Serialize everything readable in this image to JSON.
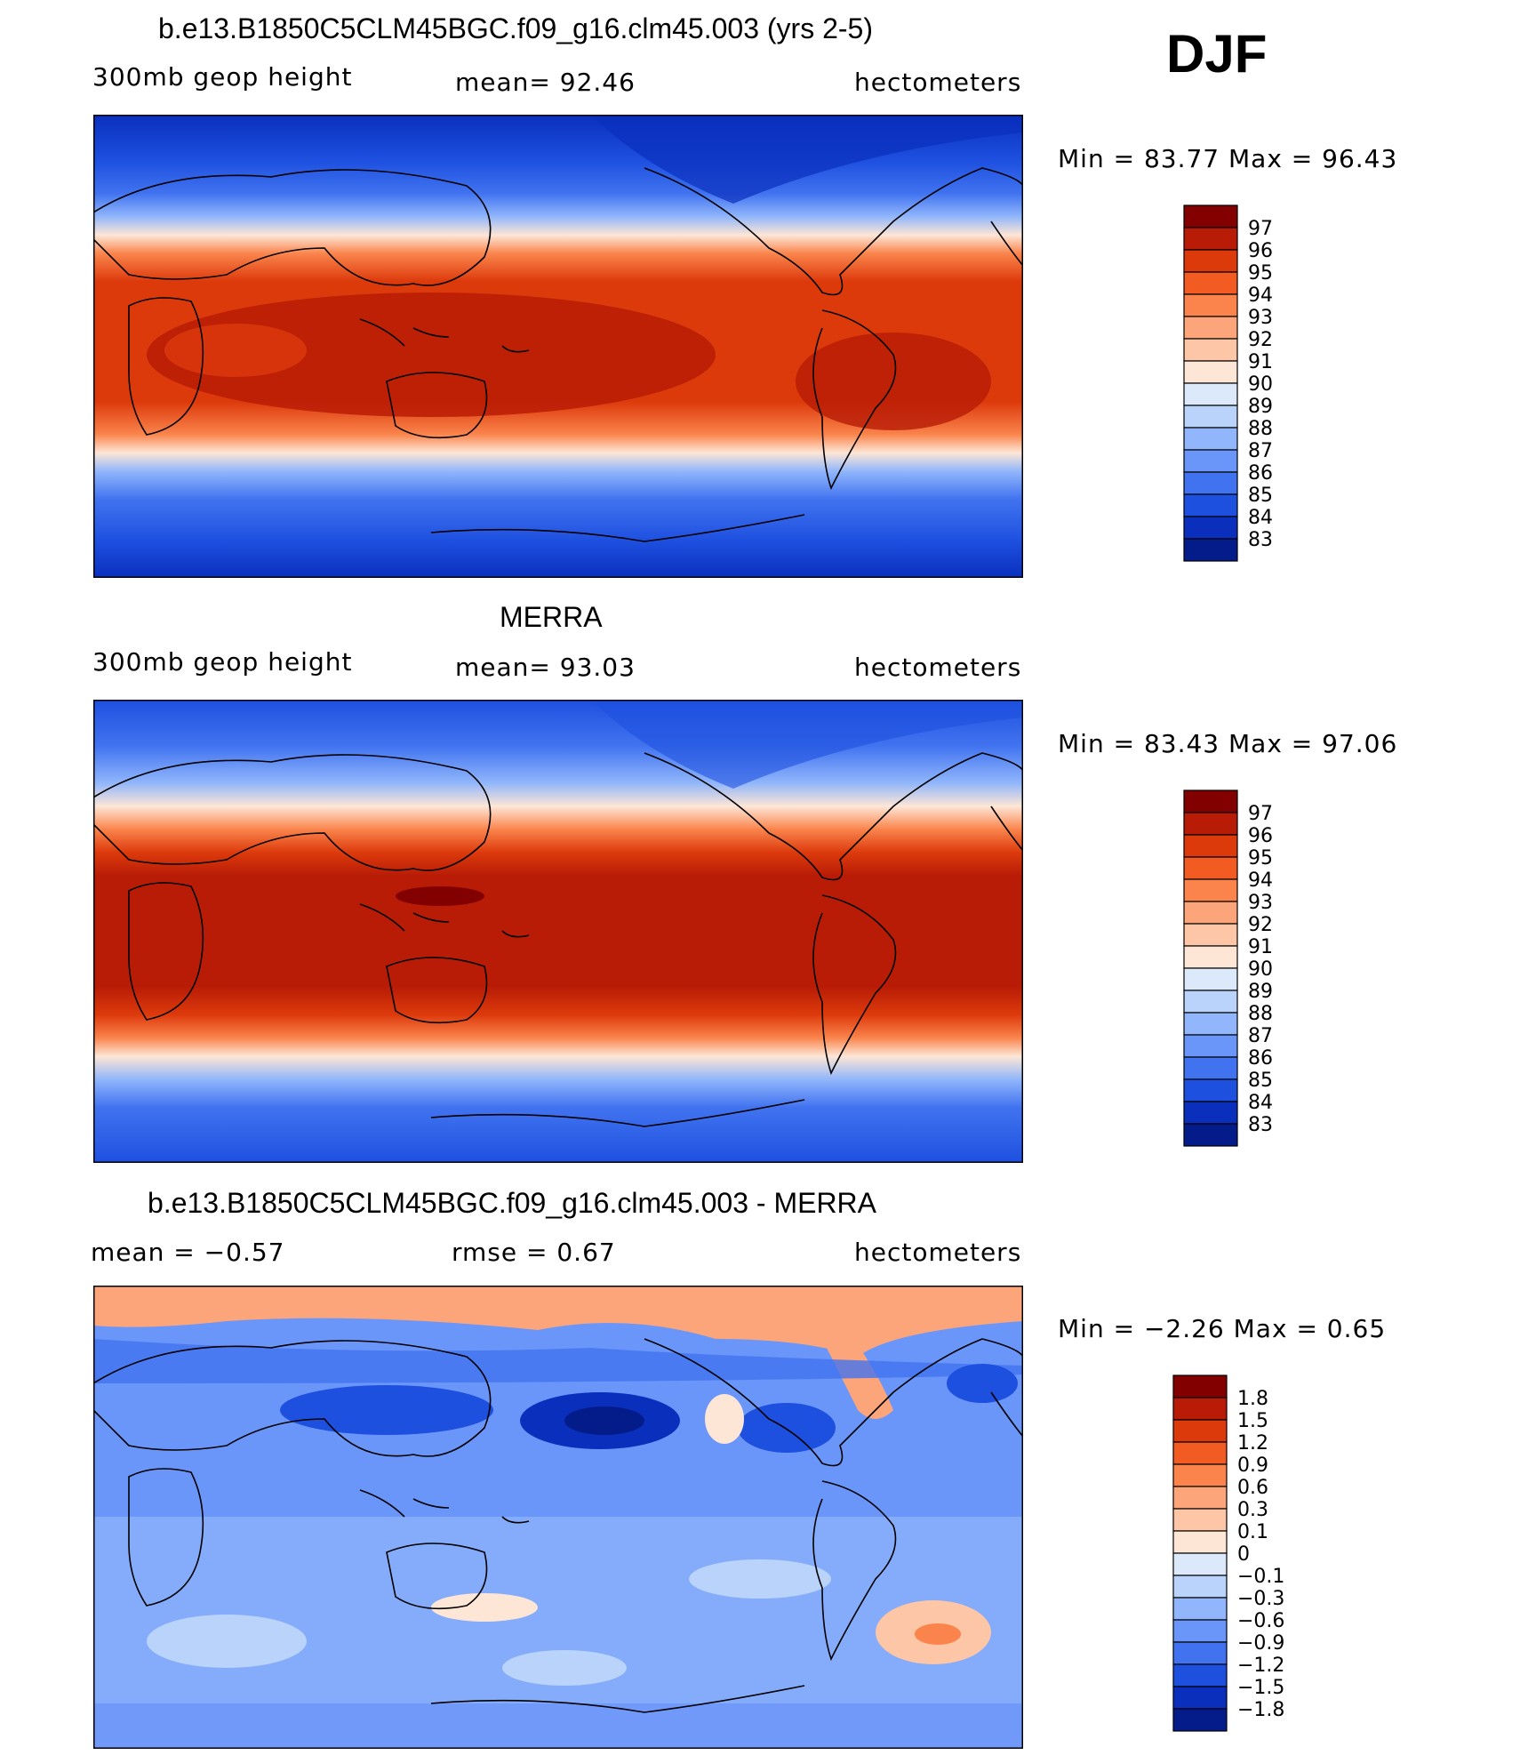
{
  "season": "DJF",
  "panels": [
    {
      "title": "b.e13.B1850C5CLM45BGC.f09_g16.clm45.003 (yrs 2-5)",
      "left_label": "300mb  geop  height",
      "center_label": "mean=   92.46",
      "units": "hectometers",
      "minmax": "Min =    83.77  Max =    96.43",
      "colorbar": {
        "labels": [
          "97",
          "96",
          "95",
          "94",
          "93",
          "92",
          "91",
          "90",
          "89",
          "88",
          "87",
          "86",
          "85",
          "84",
          "83"
        ],
        "colors": [
          "#830000",
          "#b81c06",
          "#dd3a0c",
          "#f25c22",
          "#fa844c",
          "#fca57a",
          "#fdc6a6",
          "#fde6d6",
          "#dbe9fb",
          "#b9d3fb",
          "#91b6fb",
          "#6a95f9",
          "#4173f0",
          "#1e50e0",
          "#0a2fbd",
          "#041c8a"
        ]
      }
    },
    {
      "title": "MERRA",
      "left_label": "300mb  geop  height",
      "center_label": "mean=   93.03",
      "units": "hectometers",
      "minmax": "Min =    83.43  Max =    97.06",
      "colorbar": {
        "labels": [
          "97",
          "96",
          "95",
          "94",
          "93",
          "92",
          "91",
          "90",
          "89",
          "88",
          "87",
          "86",
          "85",
          "84",
          "83"
        ],
        "colors": [
          "#830000",
          "#b81c06",
          "#dd3a0c",
          "#f25c22",
          "#fa844c",
          "#fca57a",
          "#fdc6a6",
          "#fde6d6",
          "#dbe9fb",
          "#b9d3fb",
          "#91b6fb",
          "#6a95f9",
          "#4173f0",
          "#1e50e0",
          "#0a2fbd",
          "#041c8a"
        ]
      }
    },
    {
      "title": "b.e13.B1850C5CLM45BGC.f09_g16.clm45.003 - MERRA",
      "left_label": "mean =    −0.57",
      "center_label": "rmse =     0.67",
      "units": "hectometers",
      "minmax": "Min =    −2.26  Max =      0.65",
      "colorbar": {
        "labels": [
          "1.8",
          "1.5",
          "1.2",
          "0.9",
          "0.6",
          "0.3",
          "0.1",
          "0",
          "−0.1",
          "−0.3",
          "−0.6",
          "−0.9",
          "−1.2",
          "−1.5",
          "−1.8"
        ],
        "colors": [
          "#830000",
          "#b81c06",
          "#dd3a0c",
          "#f25c22",
          "#fa844c",
          "#fca57a",
          "#fdc6a6",
          "#fde6d6",
          "#dbe9fb",
          "#b9d3fb",
          "#91b6fb",
          "#6a95f9",
          "#4173f0",
          "#1e50e0",
          "#0a2fbd",
          "#041c8a"
        ]
      }
    }
  ]
}
